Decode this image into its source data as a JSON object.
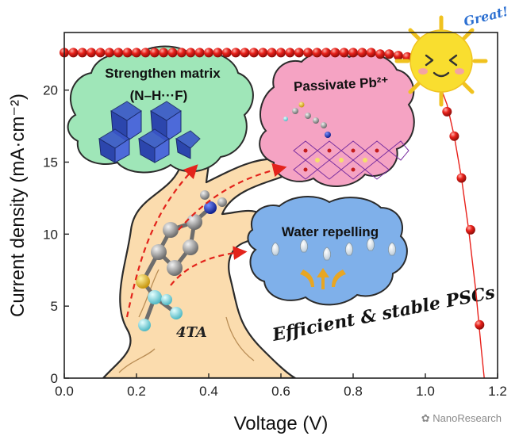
{
  "chart_data": {
    "type": "scatter",
    "xlabel": "Voltage (V)",
    "ylabel": "Current density (mA·cm⁻²)",
    "xlim": [
      0.0,
      1.2
    ],
    "ylim": [
      0,
      24
    ],
    "xticks": [
      "0.0",
      "0.2",
      "0.4",
      "0.6",
      "0.8",
      "1.0",
      "1.2"
    ],
    "yticks": [
      "0",
      "5",
      "10",
      "15",
      "20"
    ],
    "grid": false,
    "series": [
      {
        "color": "#e8211b",
        "x": [
          0.0,
          0.025,
          0.05,
          0.075,
          0.1,
          0.125,
          0.15,
          0.175,
          0.2,
          0.225,
          0.25,
          0.275,
          0.3,
          0.325,
          0.35,
          0.375,
          0.4,
          0.425,
          0.45,
          0.475,
          0.5,
          0.525,
          0.55,
          0.575,
          0.6,
          0.625,
          0.65,
          0.675,
          0.7,
          0.725,
          0.75,
          0.775,
          0.8,
          0.825,
          0.85,
          0.875,
          0.9,
          0.925,
          0.95,
          0.975,
          1.0,
          1.02,
          1.04,
          1.06,
          1.08,
          1.1,
          1.125,
          1.15
        ],
        "y": [
          22.6,
          22.6,
          22.6,
          22.6,
          22.6,
          22.6,
          22.6,
          22.6,
          22.6,
          22.6,
          22.6,
          22.6,
          22.6,
          22.6,
          22.6,
          22.6,
          22.6,
          22.6,
          22.6,
          22.6,
          22.6,
          22.6,
          22.6,
          22.6,
          22.6,
          22.6,
          22.6,
          22.6,
          22.6,
          22.6,
          22.6,
          22.6,
          22.6,
          22.6,
          22.6,
          22.5,
          22.5,
          22.4,
          22.3,
          22.1,
          21.8,
          21.3,
          20.4,
          18.5,
          16.8,
          13.9,
          10.3,
          3.7
        ]
      }
    ],
    "fit_curve": {
      "x": [
        0.0,
        0.3,
        0.6,
        0.8,
        0.9,
        0.95,
        1.0,
        1.03,
        1.06,
        1.08,
        1.1,
        1.12,
        1.14,
        1.155,
        1.163
      ],
      "y": [
        22.6,
        22.6,
        22.6,
        22.6,
        22.5,
        22.3,
        21.8,
        21.0,
        19.0,
        16.8,
        13.9,
        10.3,
        6.0,
        2.0,
        0
      ]
    }
  },
  "annotations": {
    "strengthen_title": "Strengthen matrix",
    "strengthen_sub": "(N–H···F)",
    "passivate_title": "Passivate Pb²⁺",
    "water_title": "Water repelling",
    "molecule_label": "4TA",
    "slogan": "Efficient & stable PSCs",
    "great": "Great!"
  },
  "colors": {
    "data_red": "#e8211b",
    "cloud_green": "#9fe6b8",
    "cloud_pink": "#f5a3c3",
    "cloud_blue": "#7fb0ea",
    "trunk": "#fbdcae",
    "sun": "#f9de2f"
  },
  "watermark": "NanoResearch"
}
